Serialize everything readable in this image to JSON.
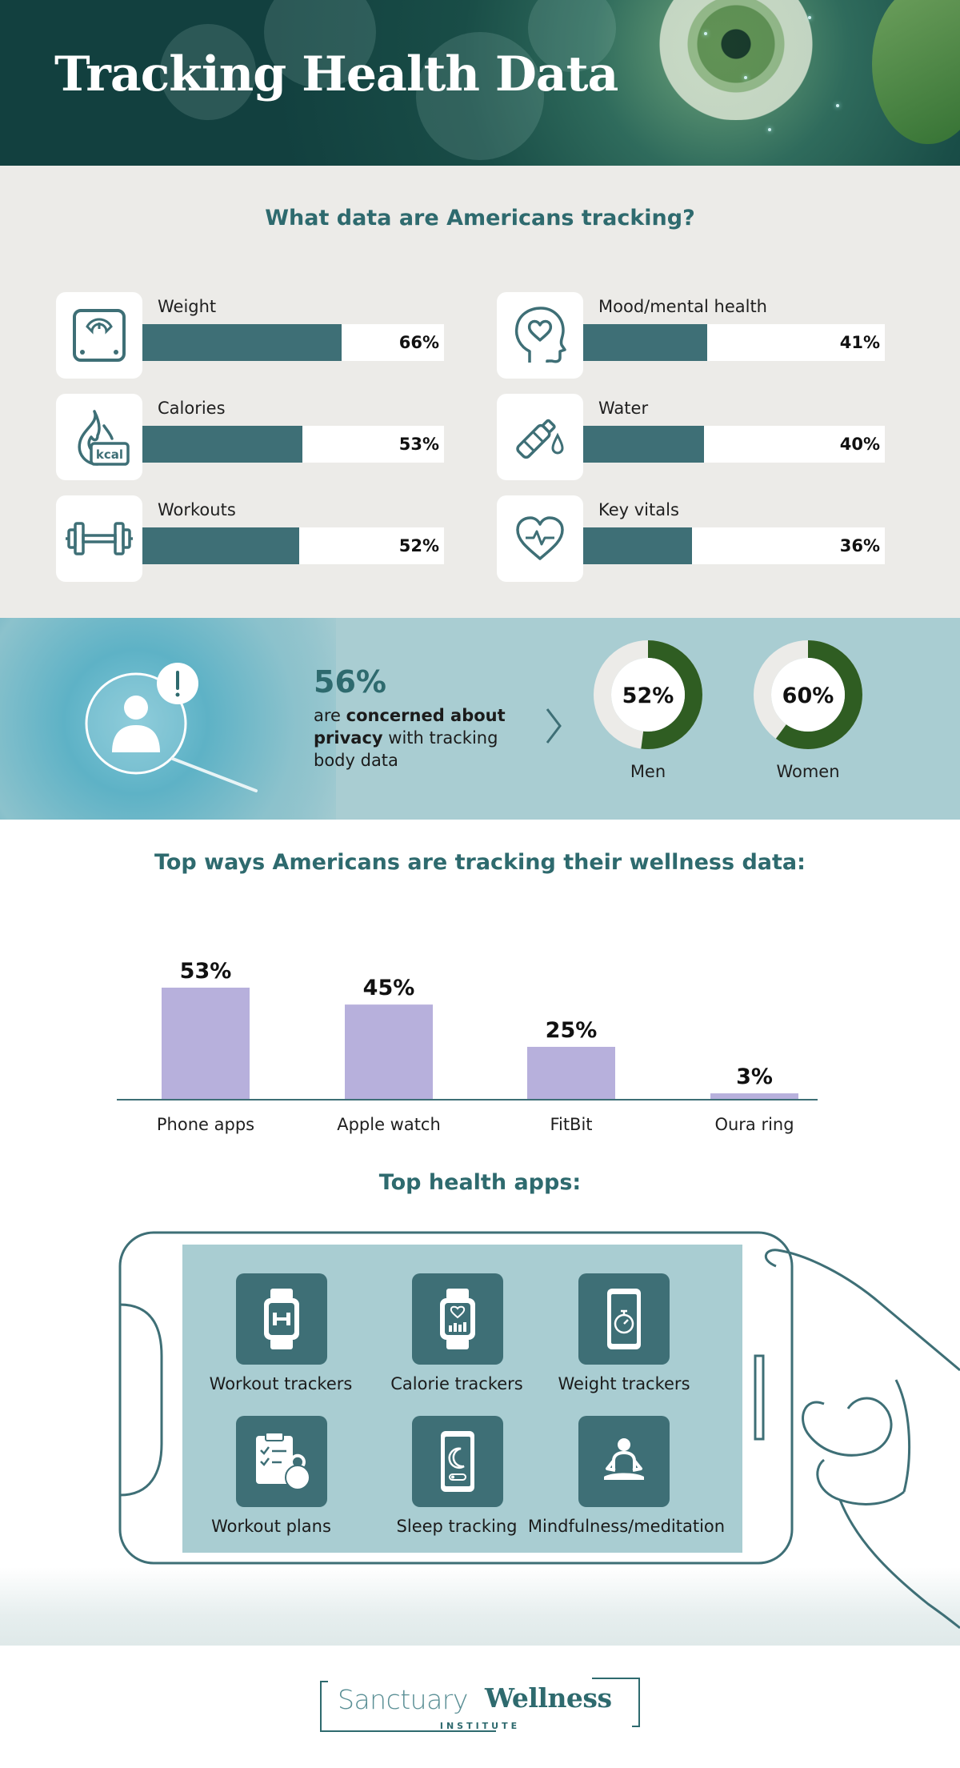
{
  "hero": {
    "title": "Tracking Health Data"
  },
  "tracking": {
    "title": "What data are Americans tracking?",
    "metrics": [
      {
        "label": "Weight",
        "value": 66,
        "value_label": "66%",
        "icon": "scale-icon"
      },
      {
        "label": "Calories",
        "value": 53,
        "value_label": "53%",
        "icon": "calorie-flame-icon",
        "icon_text": "kcal"
      },
      {
        "label": "Workouts",
        "value": 52,
        "value_label": "52%",
        "icon": "dumbbell-icon"
      },
      {
        "label": "Mood/mental health",
        "value": 41,
        "value_label": "41%",
        "icon": "head-heart-icon"
      },
      {
        "label": "Water",
        "value": 40,
        "value_label": "40%",
        "icon": "water-bottle-icon"
      },
      {
        "label": "Key vitals",
        "value": 36,
        "value_label": "36%",
        "icon": "heartbeat-icon"
      }
    ]
  },
  "privacy": {
    "headline": "56%",
    "text_before": "are ",
    "text_bold": "concerned about privacy",
    "text_after": " with tracking body data",
    "donuts": [
      {
        "label": "Men",
        "value": 52,
        "value_label": "52%"
      },
      {
        "label": "Women",
        "value": 60,
        "value_label": "60%"
      }
    ],
    "colors": {
      "ring": "#2f5d22",
      "track": "#ecebe8"
    }
  },
  "chart_data": {
    "type": "bar",
    "title": "Top ways Americans are tracking their wellness data:",
    "categories": [
      "Phone apps",
      "Apple watch",
      "FitBit",
      "Oura ring"
    ],
    "values": [
      53,
      45,
      25,
      3
    ],
    "value_labels": [
      "53%",
      "45%",
      "25%",
      "3%"
    ],
    "ylim": [
      0,
      60
    ],
    "xlabel": "",
    "ylabel": "",
    "grid": false,
    "bar_color": "#b7b0dc"
  },
  "apps": {
    "title": "Top health apps:",
    "items": [
      {
        "label": "Workout trackers",
        "icon": "smartwatch-dumbbell-icon"
      },
      {
        "label": "Calorie trackers",
        "icon": "smartwatch-heart-icon"
      },
      {
        "label": "Weight trackers",
        "icon": "phone-stopwatch-icon"
      },
      {
        "label": "Workout plans",
        "icon": "clipboard-kettlebell-icon"
      },
      {
        "label": "Sleep tracking",
        "icon": "phone-moon-icon"
      },
      {
        "label": "Mindfulness/meditation",
        "icon": "meditation-icon"
      }
    ]
  },
  "footer": {
    "logo_light": "Sanctuary",
    "logo_bold": "Wellness",
    "logo_sub": "INSTITUTE"
  },
  "colors": {
    "teal": "#3e6f76",
    "title_teal": "#2e6a6e",
    "bar_purple": "#b7b0dc",
    "gray_bg": "#ecebe8",
    "light_blue": "#a9cdd2"
  }
}
